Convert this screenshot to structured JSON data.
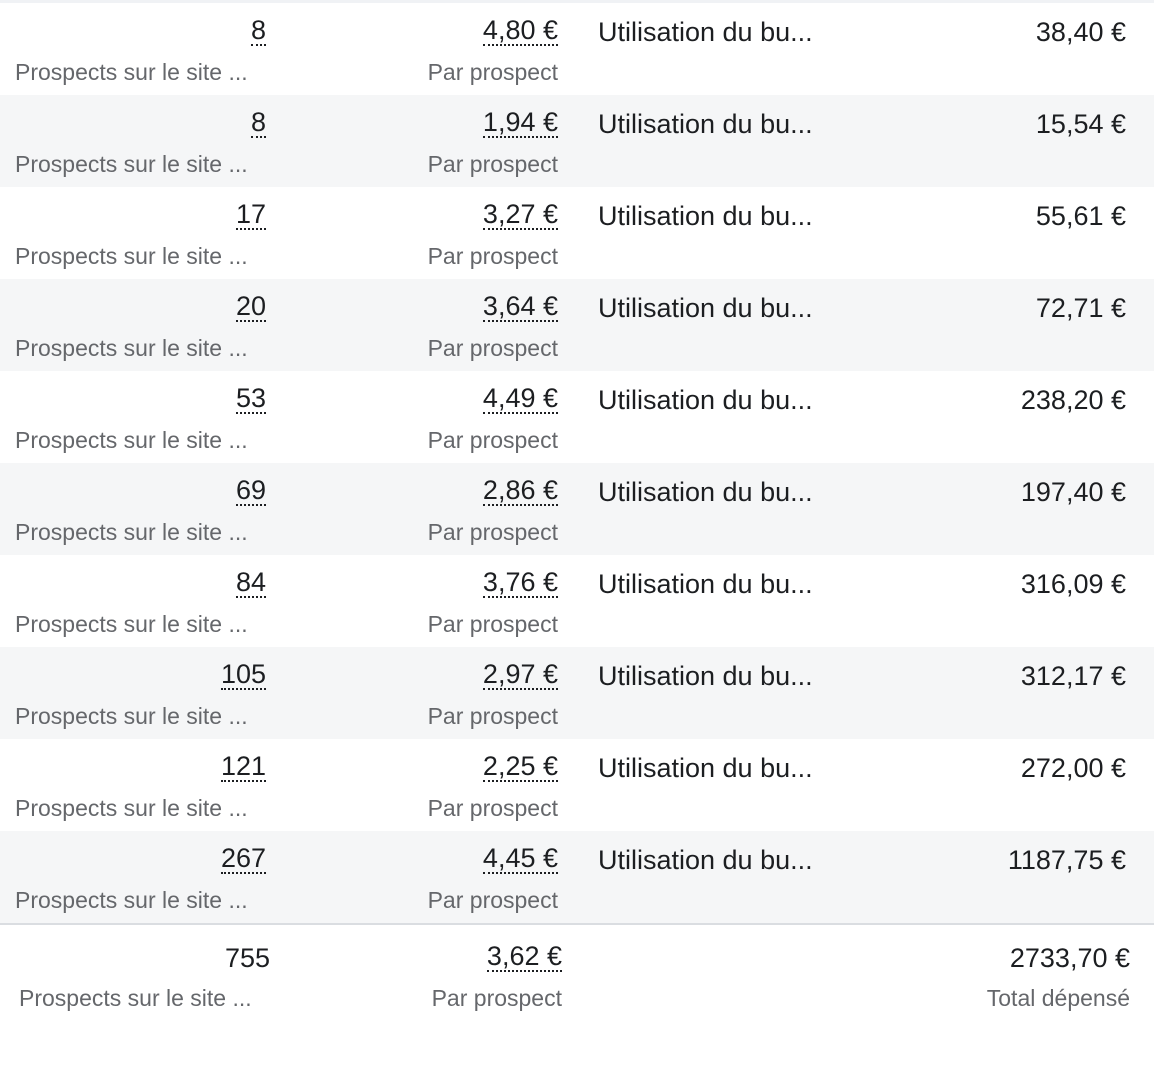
{
  "rows": [
    {
      "results": "8",
      "results_label": "Prospects sur le site ...",
      "cost_per_result": "4,80 €",
      "cost_label": "Par prospect",
      "campaign": "Utilisation du bu...",
      "amount_spent": "38,40 €"
    },
    {
      "results": "8",
      "results_label": "Prospects sur le site ...",
      "cost_per_result": "1,94 €",
      "cost_label": "Par prospect",
      "campaign": "Utilisation du bu...",
      "amount_spent": "15,54 €"
    },
    {
      "results": "17",
      "results_label": "Prospects sur le site ...",
      "cost_per_result": "3,27 €",
      "cost_label": "Par prospect",
      "campaign": "Utilisation du bu...",
      "amount_spent": "55,61 €"
    },
    {
      "results": "20",
      "results_label": "Prospects sur le site ...",
      "cost_per_result": "3,64 €",
      "cost_label": "Par prospect",
      "campaign": "Utilisation du bu...",
      "amount_spent": "72,71 €"
    },
    {
      "results": "53",
      "results_label": "Prospects sur le site ...",
      "cost_per_result": "4,49 €",
      "cost_label": "Par prospect",
      "campaign": "Utilisation du bu...",
      "amount_spent": "238,20 €"
    },
    {
      "results": "69",
      "results_label": "Prospects sur le site ...",
      "cost_per_result": "2,86 €",
      "cost_label": "Par prospect",
      "campaign": "Utilisation du bu...",
      "amount_spent": "197,40 €"
    },
    {
      "results": "84",
      "results_label": "Prospects sur le site ...",
      "cost_per_result": "3,76 €",
      "cost_label": "Par prospect",
      "campaign": "Utilisation du bu...",
      "amount_spent": "316,09 €"
    },
    {
      "results": "105",
      "results_label": "Prospects sur le site ...",
      "cost_per_result": "2,97 €",
      "cost_label": "Par prospect",
      "campaign": "Utilisation du bu...",
      "amount_spent": "312,17 €"
    },
    {
      "results": "121",
      "results_label": "Prospects sur le site ...",
      "cost_per_result": "2,25 €",
      "cost_label": "Par prospect",
      "campaign": "Utilisation du bu...",
      "amount_spent": "272,00 €"
    },
    {
      "results": "267",
      "results_label": "Prospects sur le site ...",
      "cost_per_result": "4,45 €",
      "cost_label": "Par prospect",
      "campaign": "Utilisation du bu...",
      "amount_spent": "1187,75 €"
    }
  ],
  "totals": {
    "results": "755",
    "results_label": "Prospects sur le site ...",
    "cost_per_result": "3,62 €",
    "cost_label": "Par prospect",
    "amount_spent": "2733,70 €",
    "amount_label": "Total dépensé"
  },
  "colors": {
    "text": "#1c1e21",
    "secondary_text": "#65676b",
    "alt_row_bg": "#f5f6f7",
    "divider": "#dadde1"
  }
}
